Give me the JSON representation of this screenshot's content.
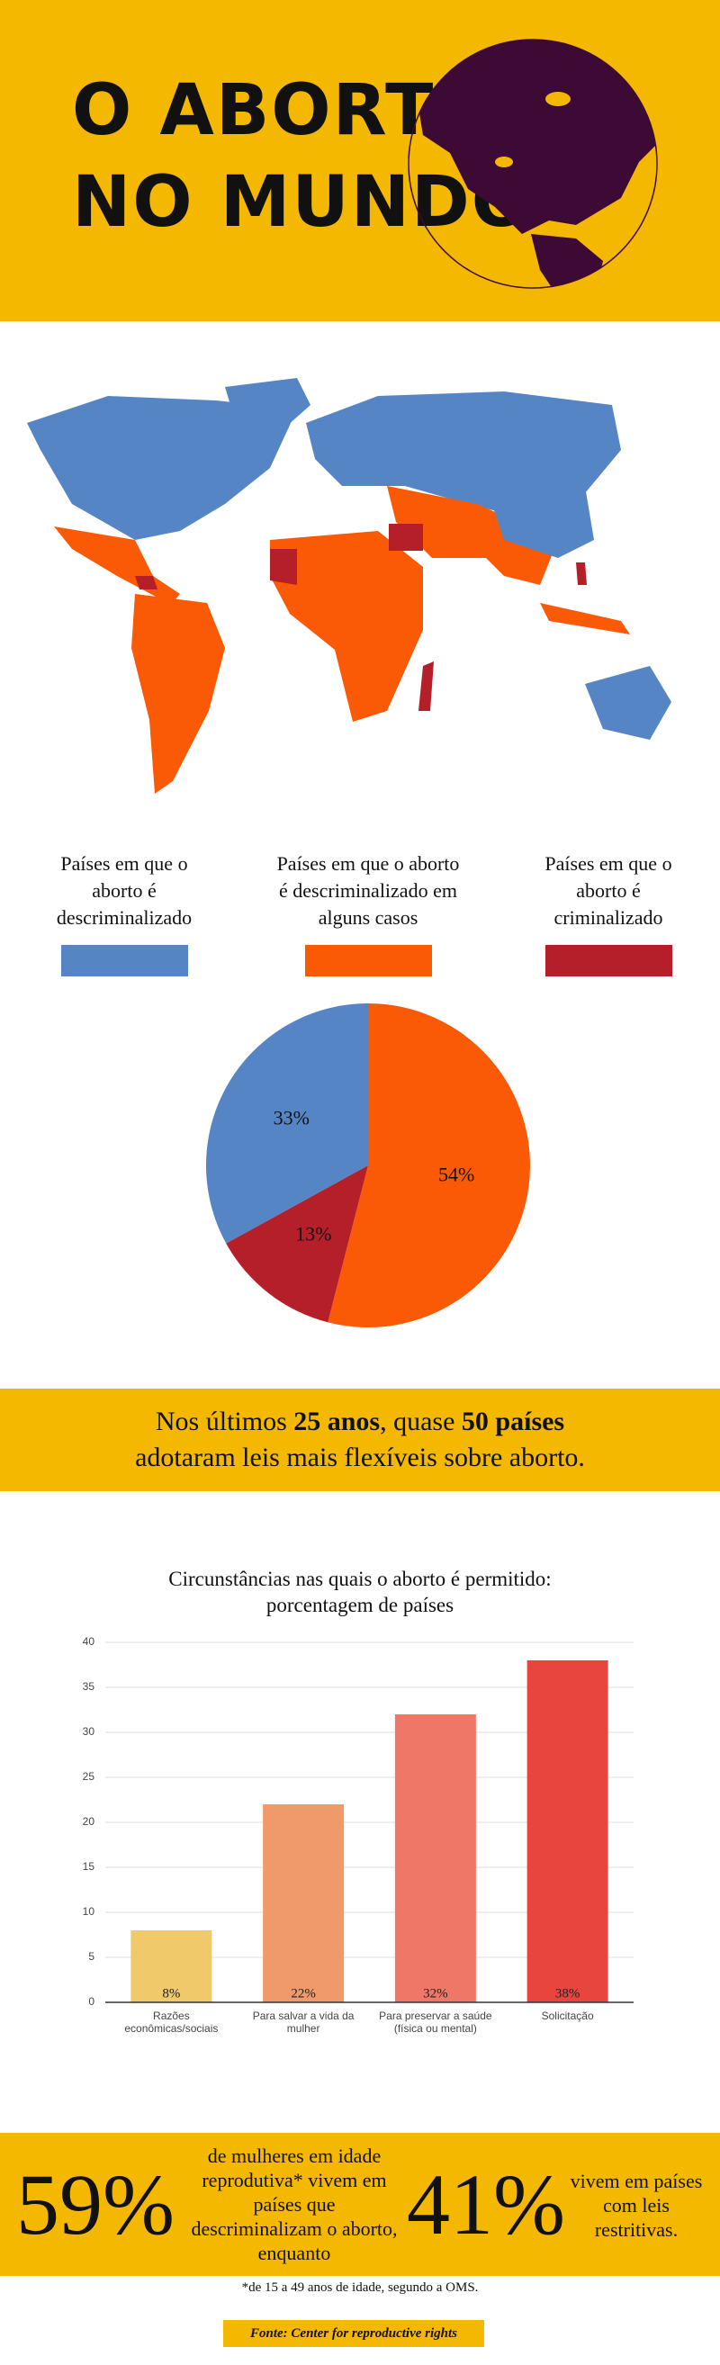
{
  "header": {
    "title_line1": "O ABORTO",
    "title_line2": "NO MUNDO"
  },
  "chart_data": [
    {
      "type": "pie",
      "categories": [
        "Países em que o aborto é descriminalizado",
        "Países em que o aborto é descriminalizado em alguns casos",
        "Países em que o aborto é criminalizado"
      ],
      "values": [
        33,
        54,
        13
      ],
      "value_labels": [
        "33%",
        "54%",
        "13%"
      ],
      "colors": [
        "#5585c5",
        "#fa5a06",
        "#b51f2a"
      ]
    },
    {
      "type": "bar",
      "title": "Circunstâncias nas quais o aborto é permitido: porcentagem de países",
      "categories": [
        "Razões econômicas/sociais",
        "Para salvar a vida da mulher",
        "Para preservar a saúde (física ou mental)",
        "Solicitação"
      ],
      "values": [
        8,
        22,
        32,
        38
      ],
      "value_labels": [
        "8%",
        "22%",
        "32%",
        "38%"
      ],
      "colors": [
        "#f0c96b",
        "#f0996a",
        "#ef7768",
        "#e8453f"
      ],
      "ylim": [
        0,
        40
      ],
      "yticks": [
        0,
        5,
        10,
        15,
        20,
        25,
        30,
        35,
        40
      ],
      "grid": true
    }
  ],
  "banner": {
    "line1": [
      "Nos últimos ",
      "25 anos",
      ", quase ",
      "50 países"
    ],
    "line2": "adotaram leis mais flexíveis sobre aborto."
  },
  "stats": [
    {
      "value": "59%",
      "text": "de mulheres em idade reprodutiva* vivem em países que descriminalizam o aborto, enquanto"
    },
    {
      "value": "41%",
      "text": "vivem em países com leis restritivas."
    }
  ],
  "footnote": "*de 15 a 49 anos de idade, segundo a OMS.",
  "source": "Fonte: Center for reproductive rights"
}
